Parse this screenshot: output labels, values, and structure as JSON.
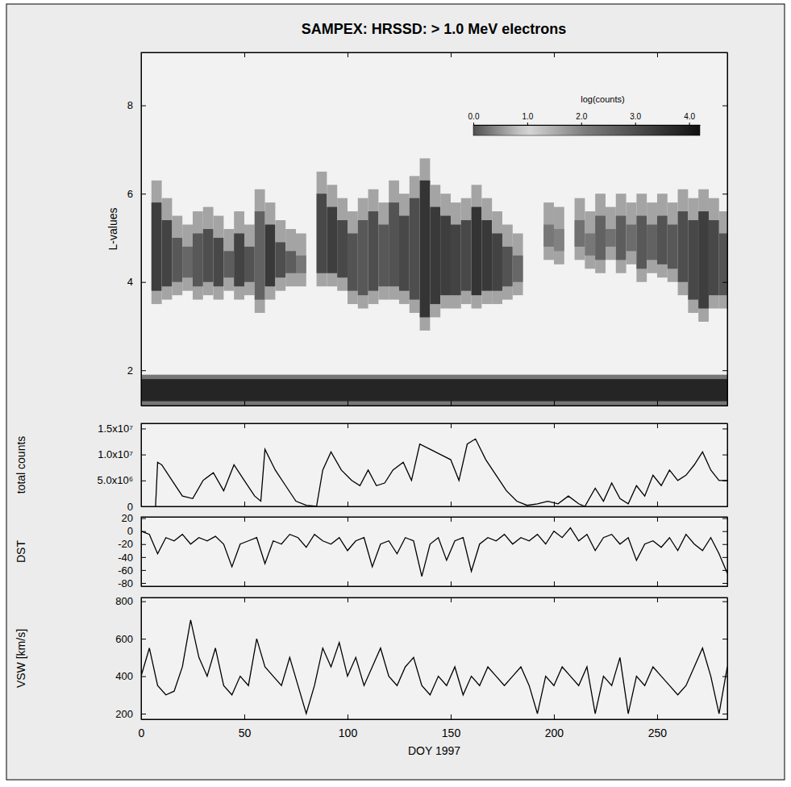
{
  "chart_data": [
    {
      "type": "heatmap",
      "title": "SAMPEX: HRSSD: > 1.0 MeV electrons",
      "ylabel": "L-values",
      "xlim": [
        0,
        284
      ],
      "xticks": [
        0,
        50,
        100,
        150,
        200,
        250
      ],
      "ylim": [
        1.2,
        9.2
      ],
      "yticks": [
        2,
        4,
        6,
        8
      ],
      "tick_labels": "y",
      "colorbar": {
        "label": "log(counts)",
        "range": [
          0,
          4.2
        ],
        "ticks": [
          {
            "value": 0,
            "label": "0.0"
          },
          {
            "value": 1,
            "label": "1.0"
          },
          {
            "value": 2,
            "label": "2.0"
          },
          {
            "value": 3,
            "label": "3.0"
          },
          {
            "value": 4,
            "label": "4.0"
          }
        ]
      },
      "cells": [
        [
          0,
          285,
          1.2,
          1.9,
          2.2
        ],
        [
          0,
          285,
          1.3,
          1.8,
          3.8
        ],
        [
          5,
          10,
          3.5,
          6.3,
          1.6
        ],
        [
          5,
          10,
          3.8,
          5.8,
          3.3
        ],
        [
          10,
          15,
          3.6,
          5.9,
          1.6
        ],
        [
          10,
          15,
          3.9,
          5.4,
          3.2
        ],
        [
          15,
          20,
          3.7,
          5.5,
          1.6
        ],
        [
          15,
          20,
          4.0,
          5.0,
          2.8
        ],
        [
          20,
          25,
          3.8,
          5.3,
          1.6
        ],
        [
          20,
          25,
          4.1,
          4.8,
          2.5
        ],
        [
          25,
          30,
          3.6,
          5.6,
          1.6
        ],
        [
          25,
          30,
          3.9,
          5.1,
          2.8
        ],
        [
          30,
          35,
          3.7,
          5.7,
          1.6
        ],
        [
          30,
          35,
          4.0,
          5.2,
          3.0
        ],
        [
          35,
          40,
          3.6,
          5.5,
          1.6
        ],
        [
          35,
          40,
          3.9,
          5.0,
          3.1
        ],
        [
          40,
          45,
          3.8,
          5.2,
          1.6
        ],
        [
          40,
          45,
          4.1,
          4.7,
          2.7
        ],
        [
          45,
          50,
          3.6,
          5.6,
          1.6
        ],
        [
          45,
          50,
          3.9,
          5.1,
          3.2
        ],
        [
          50,
          55,
          3.7,
          5.3,
          1.6
        ],
        [
          50,
          55,
          4.0,
          4.8,
          2.9
        ],
        [
          55,
          60,
          3.3,
          6.1,
          1.6
        ],
        [
          55,
          60,
          3.6,
          5.6,
          2.6
        ],
        [
          60,
          65,
          3.6,
          5.8,
          1.6
        ],
        [
          60,
          65,
          3.9,
          5.3,
          3.4
        ],
        [
          65,
          70,
          3.8,
          5.4,
          1.6
        ],
        [
          65,
          70,
          4.1,
          4.9,
          3.0
        ],
        [
          70,
          75,
          3.9,
          5.2,
          1.6
        ],
        [
          70,
          75,
          4.2,
          4.7,
          2.7
        ],
        [
          75,
          80,
          3.9,
          5.1,
          1.6
        ],
        [
          75,
          80,
          4.2,
          4.6,
          2.2
        ],
        [
          85,
          90,
          3.9,
          6.5,
          1.6
        ],
        [
          85,
          90,
          4.2,
          6.0,
          3.1
        ],
        [
          90,
          95,
          3.9,
          6.2,
          1.6
        ],
        [
          90,
          95,
          4.2,
          5.7,
          3.3
        ],
        [
          95,
          100,
          3.8,
          5.9,
          1.6
        ],
        [
          95,
          100,
          4.1,
          5.4,
          3.1
        ],
        [
          100,
          105,
          3.5,
          5.6,
          1.6
        ],
        [
          100,
          105,
          3.8,
          5.1,
          2.9
        ],
        [
          105,
          110,
          3.4,
          5.9,
          1.6
        ],
        [
          105,
          110,
          3.7,
          5.4,
          2.8
        ],
        [
          110,
          115,
          3.5,
          6.1,
          1.6
        ],
        [
          110,
          115,
          3.8,
          5.6,
          3.0
        ],
        [
          115,
          120,
          3.6,
          5.8,
          1.6
        ],
        [
          115,
          120,
          3.9,
          5.3,
          2.8
        ],
        [
          120,
          125,
          3.6,
          6.3,
          1.6
        ],
        [
          120,
          125,
          3.9,
          5.8,
          2.9
        ],
        [
          125,
          130,
          3.5,
          6.0,
          1.6
        ],
        [
          125,
          130,
          3.8,
          5.5,
          3.1
        ],
        [
          130,
          135,
          3.3,
          6.4,
          1.6
        ],
        [
          130,
          135,
          3.6,
          5.9,
          3.0
        ],
        [
          135,
          140,
          2.9,
          6.8,
          1.6
        ],
        [
          135,
          140,
          3.2,
          6.3,
          3.5
        ],
        [
          140,
          145,
          3.2,
          6.2,
          1.6
        ],
        [
          140,
          145,
          3.5,
          5.7,
          3.4
        ],
        [
          145,
          150,
          3.4,
          6.0,
          1.6
        ],
        [
          145,
          150,
          3.7,
          5.5,
          3.3
        ],
        [
          150,
          155,
          3.4,
          5.8,
          1.6
        ],
        [
          150,
          155,
          3.7,
          5.3,
          3.2
        ],
        [
          155,
          160,
          3.5,
          5.9,
          1.6
        ],
        [
          155,
          160,
          3.8,
          5.4,
          3.1
        ],
        [
          160,
          165,
          3.4,
          6.2,
          1.6
        ],
        [
          160,
          165,
          3.7,
          5.7,
          3.5
        ],
        [
          165,
          170,
          3.5,
          5.9,
          1.6
        ],
        [
          165,
          170,
          3.8,
          5.4,
          3.4
        ],
        [
          170,
          175,
          3.5,
          5.6,
          1.6
        ],
        [
          170,
          175,
          3.8,
          5.1,
          3.2
        ],
        [
          175,
          180,
          3.6,
          5.3,
          1.6
        ],
        [
          175,
          180,
          3.9,
          4.8,
          2.9
        ],
        [
          180,
          185,
          3.7,
          5.1,
          1.6
        ],
        [
          180,
          185,
          4.0,
          4.6,
          2.5
        ],
        [
          195,
          200,
          4.5,
          5.8,
          1.6
        ],
        [
          195,
          200,
          4.8,
          5.3,
          2.2
        ],
        [
          200,
          205,
          4.4,
          5.7,
          1.6
        ],
        [
          200,
          205,
          4.7,
          5.2,
          2.0
        ],
        [
          210,
          215,
          4.5,
          5.9,
          1.6
        ],
        [
          210,
          215,
          4.8,
          5.4,
          2.3
        ],
        [
          215,
          220,
          4.3,
          5.6,
          1.6
        ],
        [
          215,
          220,
          4.6,
          5.1,
          2.2
        ],
        [
          220,
          225,
          4.2,
          6.0,
          1.6
        ],
        [
          220,
          225,
          4.5,
          5.5,
          2.6
        ],
        [
          225,
          230,
          4.5,
          5.7,
          1.6
        ],
        [
          225,
          230,
          4.8,
          5.2,
          2.3
        ],
        [
          230,
          235,
          4.2,
          6.0,
          1.6
        ],
        [
          230,
          235,
          4.5,
          5.5,
          2.7
        ],
        [
          235,
          240,
          4.4,
          5.8,
          1.6
        ],
        [
          235,
          240,
          4.7,
          5.3,
          2.4
        ],
        [
          240,
          245,
          4.0,
          6.0,
          1.6
        ],
        [
          240,
          245,
          4.3,
          5.5,
          2.8
        ],
        [
          245,
          250,
          4.2,
          5.8,
          1.6
        ],
        [
          245,
          250,
          4.5,
          5.3,
          2.6
        ],
        [
          250,
          255,
          4.1,
          6.0,
          1.6
        ],
        [
          250,
          255,
          4.4,
          5.5,
          2.9
        ],
        [
          255,
          260,
          4.0,
          5.8,
          1.6
        ],
        [
          255,
          260,
          4.3,
          5.3,
          2.8
        ],
        [
          260,
          265,
          3.7,
          6.1,
          1.6
        ],
        [
          260,
          265,
          4.0,
          5.6,
          3.0
        ],
        [
          265,
          270,
          3.3,
          5.9,
          1.6
        ],
        [
          265,
          270,
          3.6,
          5.4,
          3.1
        ],
        [
          270,
          275,
          3.1,
          6.1,
          1.6
        ],
        [
          270,
          275,
          3.4,
          5.6,
          3.3
        ],
        [
          275,
          280,
          3.4,
          5.9,
          1.6
        ],
        [
          275,
          280,
          3.7,
          5.4,
          3.1
        ],
        [
          280,
          285,
          3.4,
          5.6,
          1.6
        ],
        [
          280,
          285,
          3.7,
          5.1,
          2.9
        ]
      ]
    },
    {
      "type": "line",
      "ylabel": "total counts",
      "color": "#000000",
      "xlim": [
        0,
        284
      ],
      "xticks": [
        0,
        50,
        100,
        150,
        200,
        250
      ],
      "ylim": [
        0,
        16000000
      ],
      "yticks": [
        0,
        {
          "value": 5000000,
          "label": "5.0x10⁶"
        },
        {
          "value": 10000000,
          "label": "1.0x10⁷"
        },
        {
          "value": 15000000,
          "label": "1.5x10⁷"
        }
      ],
      "tick_labels": "y",
      "x": [
        7,
        8,
        10,
        15,
        20,
        25,
        30,
        35,
        40,
        45,
        50,
        55,
        58,
        60,
        65,
        70,
        75,
        80,
        85,
        88,
        92,
        97,
        102,
        106,
        110,
        114,
        118,
        122,
        127,
        131,
        135,
        140,
        145,
        150,
        154,
        158,
        162,
        167,
        172,
        177,
        182,
        187,
        192,
        197,
        202,
        207,
        212,
        215,
        220,
        224,
        228,
        232,
        236,
        240,
        244,
        248,
        252,
        256,
        260,
        264,
        268,
        272,
        276,
        280,
        284
      ],
      "values": [
        0,
        8500000,
        8000000,
        5000000,
        2000000,
        1500000,
        5000000,
        6500000,
        3000000,
        8000000,
        5000000,
        2000000,
        1000000,
        11000000,
        7000000,
        4000000,
        1000000,
        200000,
        0,
        7000000,
        10500000,
        7000000,
        5000000,
        4000000,
        7000000,
        4000000,
        4500000,
        7000000,
        8500000,
        5000000,
        12000000,
        11000000,
        10000000,
        9000000,
        5000000,
        12000000,
        13000000,
        9000000,
        6000000,
        3000000,
        1000000,
        200000,
        500000,
        1000000,
        500000,
        2000000,
        500000,
        0,
        3500000,
        1000000,
        4500000,
        1500000,
        500000,
        4000000,
        2000000,
        6000000,
        4000000,
        7000000,
        5000000,
        6000000,
        8000000,
        10500000,
        7000000,
        5000000,
        5000000
      ]
    },
    {
      "type": "line",
      "ylabel": "DST",
      "color": "#000000",
      "xlim": [
        0,
        284
      ],
      "xticks": [
        0,
        50,
        100,
        150,
        200,
        250
      ],
      "ylim": [
        -85,
        22
      ],
      "yticks": [
        -80,
        -60,
        -40,
        -20,
        0,
        20
      ],
      "tick_labels": "y",
      "x": [
        0,
        4,
        8,
        12,
        16,
        20,
        24,
        28,
        32,
        36,
        40,
        44,
        48,
        52,
        56,
        60,
        64,
        68,
        72,
        76,
        80,
        84,
        88,
        92,
        96,
        100,
        104,
        108,
        112,
        116,
        120,
        124,
        128,
        132,
        136,
        140,
        144,
        148,
        152,
        156,
        160,
        164,
        168,
        172,
        176,
        180,
        184,
        188,
        192,
        196,
        200,
        204,
        208,
        212,
        216,
        220,
        224,
        228,
        232,
        236,
        240,
        244,
        248,
        252,
        256,
        260,
        264,
        268,
        272,
        276,
        280,
        284
      ],
      "values": [
        0,
        -5,
        -35,
        -10,
        -15,
        -5,
        -20,
        -10,
        -15,
        -8,
        -20,
        -55,
        -20,
        -15,
        -10,
        -50,
        -15,
        -20,
        -5,
        -10,
        -25,
        -5,
        -15,
        -20,
        -10,
        -30,
        -15,
        -10,
        -55,
        -20,
        -15,
        -35,
        -10,
        -15,
        -70,
        -20,
        -10,
        -45,
        -15,
        -10,
        -62,
        -20,
        -10,
        -15,
        -5,
        -20,
        -10,
        -15,
        -5,
        -20,
        0,
        -10,
        5,
        -15,
        -5,
        -30,
        -10,
        -5,
        -20,
        -10,
        -45,
        -20,
        -15,
        -25,
        -10,
        -30,
        -5,
        -20,
        -30,
        -10,
        -35,
        -65
      ]
    },
    {
      "type": "line",
      "ylabel": "VSW [km/s]",
      "xlabel": "DOY 1997",
      "color": "#000000",
      "xlim": [
        0,
        284
      ],
      "xticks": [
        0,
        50,
        100,
        150,
        200,
        250
      ],
      "ylim": [
        170,
        820
      ],
      "yticks": [
        200,
        400,
        600,
        800
      ],
      "x": [
        0,
        4,
        8,
        12,
        16,
        20,
        24,
        28,
        32,
        36,
        40,
        44,
        48,
        52,
        56,
        60,
        64,
        68,
        72,
        76,
        80,
        84,
        88,
        92,
        96,
        100,
        104,
        108,
        112,
        116,
        120,
        124,
        128,
        132,
        136,
        140,
        144,
        148,
        152,
        156,
        160,
        164,
        168,
        172,
        176,
        180,
        184,
        188,
        192,
        196,
        200,
        204,
        208,
        212,
        216,
        220,
        224,
        228,
        232,
        236,
        240,
        244,
        248,
        252,
        256,
        260,
        264,
        268,
        272,
        276,
        280,
        284
      ],
      "values": [
        400,
        550,
        350,
        300,
        320,
        450,
        700,
        500,
        400,
        550,
        350,
        300,
        400,
        350,
        600,
        450,
        400,
        350,
        500,
        350,
        200,
        350,
        550,
        450,
        580,
        400,
        500,
        350,
        450,
        550,
        400,
        350,
        450,
        500,
        350,
        300,
        400,
        350,
        450,
        300,
        400,
        350,
        450,
        400,
        350,
        400,
        450,
        350,
        200,
        400,
        350,
        450,
        400,
        350,
        450,
        200,
        400,
        350,
        500,
        200,
        400,
        350,
        450,
        400,
        350,
        300,
        350,
        450,
        550,
        400,
        200,
        450
      ]
    }
  ]
}
